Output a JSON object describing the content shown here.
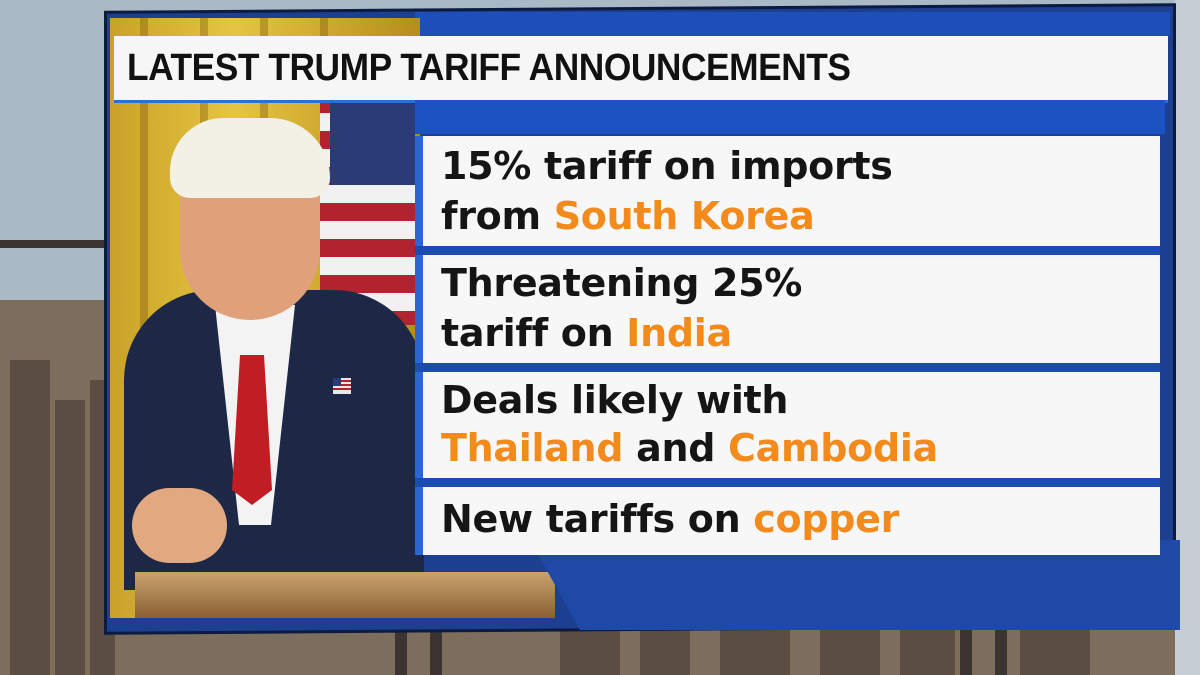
{
  "title": "LATEST TRUMP TARIFF ANNOUNCEMENTS",
  "colors": {
    "accent_blue": "#1d52c2",
    "highlight_orange": "#f28a1c",
    "panel_white": "#f7f7f7",
    "text_dark": "#151515"
  },
  "items": [
    {
      "line1": [
        {
          "text": "15% tariff on imports",
          "highlight": false
        }
      ],
      "line2": [
        {
          "text": "from ",
          "highlight": false
        },
        {
          "text": "South Korea",
          "highlight": true
        }
      ]
    },
    {
      "line1": [
        {
          "text": "Threatening 25%",
          "highlight": false
        }
      ],
      "line2": [
        {
          "text": "tariff on ",
          "highlight": false
        },
        {
          "text": "India",
          "highlight": true
        }
      ]
    },
    {
      "line1": [
        {
          "text": "Deals likely with",
          "highlight": false
        }
      ],
      "line2": [
        {
          "text": "Thailand",
          "highlight": true
        },
        {
          "text": " and ",
          "highlight": false
        },
        {
          "text": "Cambodia",
          "highlight": true
        }
      ]
    },
    {
      "line1": [
        {
          "text": "New tariffs on ",
          "highlight": false
        },
        {
          "text": "copper",
          "highlight": true
        }
      ]
    }
  ],
  "icons": [
    "flag-pin-icon"
  ]
}
